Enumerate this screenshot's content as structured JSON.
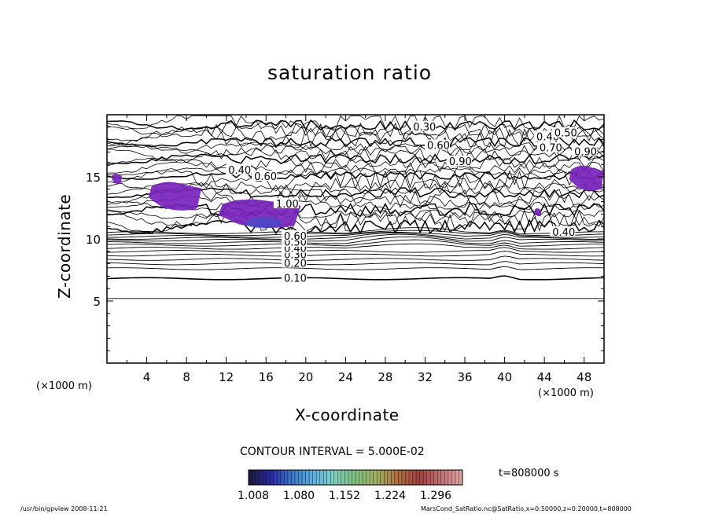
{
  "chart_data": {
    "type": "contour",
    "title": "saturation ratio",
    "xlabel": "X-coordinate",
    "ylabel": "Z-coordinate",
    "x_unit": "(×1000 m)",
    "xlim": [
      0,
      50
    ],
    "ylim": [
      0,
      20
    ],
    "x_ticks": [
      4,
      8,
      12,
      16,
      20,
      24,
      28,
      32,
      36,
      40,
      44,
      48
    ],
    "y_ticks": [
      5,
      10,
      15
    ],
    "contour_labels": [
      {
        "text": "0.10",
        "x": 17.8,
        "z": 6.8
      },
      {
        "text": "0.20",
        "x": 17.8,
        "z": 8.0
      },
      {
        "text": "0.30",
        "x": 17.8,
        "z": 8.7
      },
      {
        "text": "0.40",
        "x": 17.8,
        "z": 9.2
      },
      {
        "text": "0.50",
        "x": 17.8,
        "z": 9.7
      },
      {
        "text": "0.60",
        "x": 17.8,
        "z": 10.2
      },
      {
        "text": "1.00",
        "x": 17.0,
        "z": 12.8
      },
      {
        "text": "0.40",
        "x": 12.2,
        "z": 15.5
      },
      {
        "text": "0.60",
        "x": 14.8,
        "z": 15.0
      },
      {
        "text": "0.30",
        "x": 30.8,
        "z": 19.0
      },
      {
        "text": "0.60",
        "x": 32.2,
        "z": 17.5
      },
      {
        "text": "0.40",
        "x": 43.2,
        "z": 18.2
      },
      {
        "text": "0.50",
        "x": 45.0,
        "z": 18.5
      },
      {
        "text": "0.70",
        "x": 43.5,
        "z": 17.3
      },
      {
        "text": "0.90",
        "x": 47.0,
        "z": 17.0
      },
      {
        "text": "0.90",
        "x": 34.4,
        "z": 16.2
      },
      {
        "text": "0.40",
        "x": 44.8,
        "z": 10.5
      }
    ],
    "shaded_regions_supersaturated": [
      {
        "x": [
          0.5,
          1.5
        ],
        "z": [
          14.4,
          15.3
        ]
      },
      {
        "x": [
          4.2,
          9.5
        ],
        "z": [
          12.2,
          14.7
        ]
      },
      {
        "x": [
          11.2,
          19.5
        ],
        "z": [
          10.8,
          13.3
        ]
      },
      {
        "x": [
          46.5,
          50
        ],
        "z": [
          13.8,
          16.0
        ]
      },
      {
        "x": [
          43.0,
          43.7
        ],
        "z": [
          11.8,
          12.5
        ]
      }
    ],
    "contour_interval": "CONTOUR INTERVAL = 5.000E-02",
    "colorbar": {
      "ticks": [
        "1.008",
        "1.080",
        "1.152",
        "1.224",
        "1.296"
      ],
      "colors": [
        "#1a1a40",
        "#2b2ba8",
        "#3a78c8",
        "#5fb0e0",
        "#7fd0c0",
        "#80c080",
        "#a0b060",
        "#b07040",
        "#a04040",
        "#c07070",
        "#e0a0a0"
      ]
    },
    "time": "t=808000 s",
    "grid": false
  },
  "footer": {
    "left": "/usr/bin/gpview   2008-11-21",
    "right": "MarsCond_SatRatio.nc@SatRatio,x=0:50000,z=0:20000,t=808000"
  },
  "colors": {
    "shade": "#7722bb",
    "shade_core": "#3355cc",
    "line": "#000000"
  }
}
